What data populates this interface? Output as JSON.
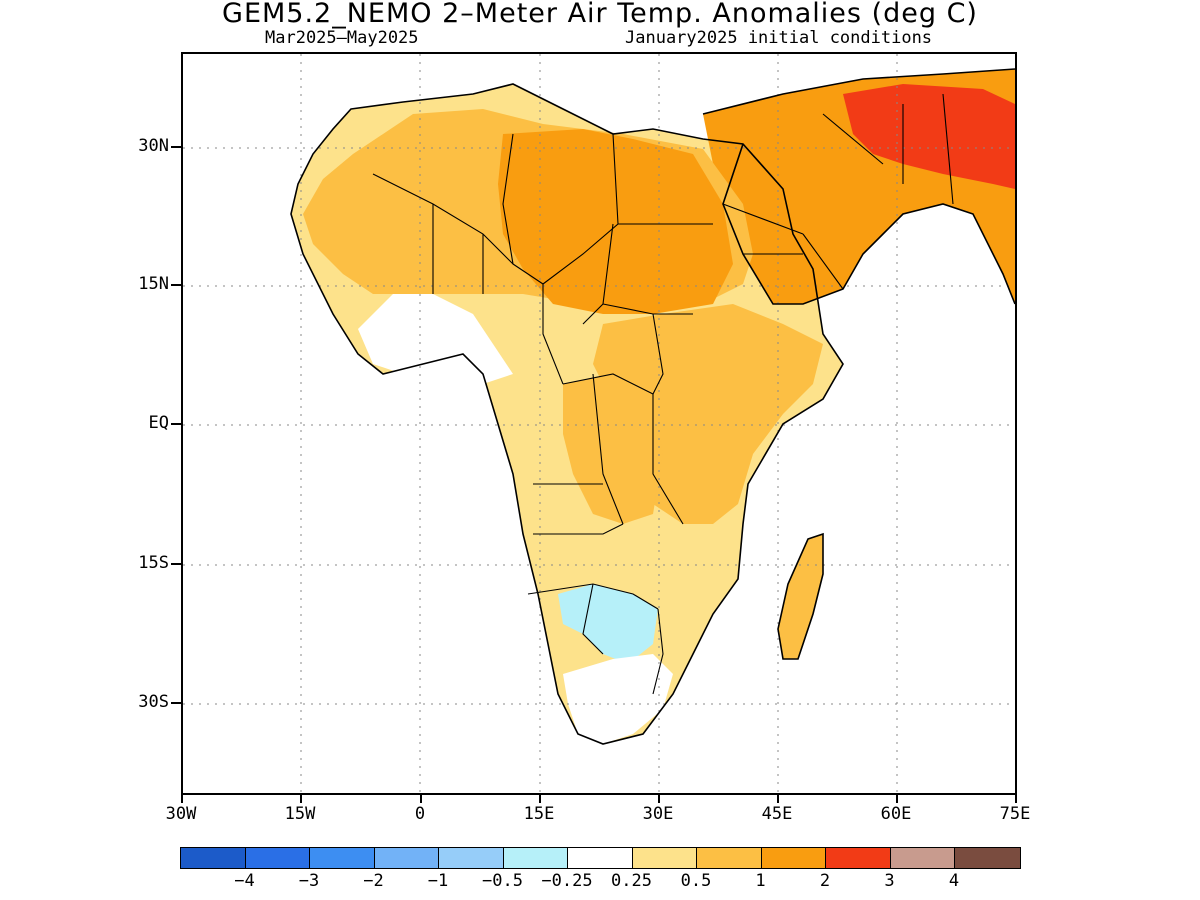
{
  "title": "GEM5.2_NEMO 2–Meter Air Temp. Anomalies (deg C)",
  "subtitle_left": "Mar2025–May2025",
  "subtitle_right": "January2025 initial conditions",
  "y_ticks": [
    "30N",
    "15N",
    "EQ",
    "15S",
    "30S"
  ],
  "x_ticks": [
    "30W",
    "15W",
    "0",
    "15E",
    "30E",
    "45E",
    "60E",
    "75E"
  ],
  "colorbar": {
    "colors": [
      "#1c5bc9",
      "#2a6fe6",
      "#3d8ef2",
      "#72b2f7",
      "#96cdf9",
      "#b6f0f9",
      "#ffffff",
      "#fde28b",
      "#fcbf44",
      "#f99d10",
      "#f23b16",
      "#c89b8e",
      "#7a4c3f"
    ],
    "labels": [
      "−4",
      "−3",
      "−2",
      "−1",
      "−0.5",
      "−0.25",
      "0.25",
      "0.5",
      "1",
      "2",
      "3",
      "4"
    ]
  },
  "map_colors": {
    "ocean": "#ffffff",
    "weak_warm": "#fde28b",
    "warm": "#fcbf44",
    "warmer": "#f99d10",
    "hot": "#f23b16",
    "cool": "#b6f0f9"
  }
}
